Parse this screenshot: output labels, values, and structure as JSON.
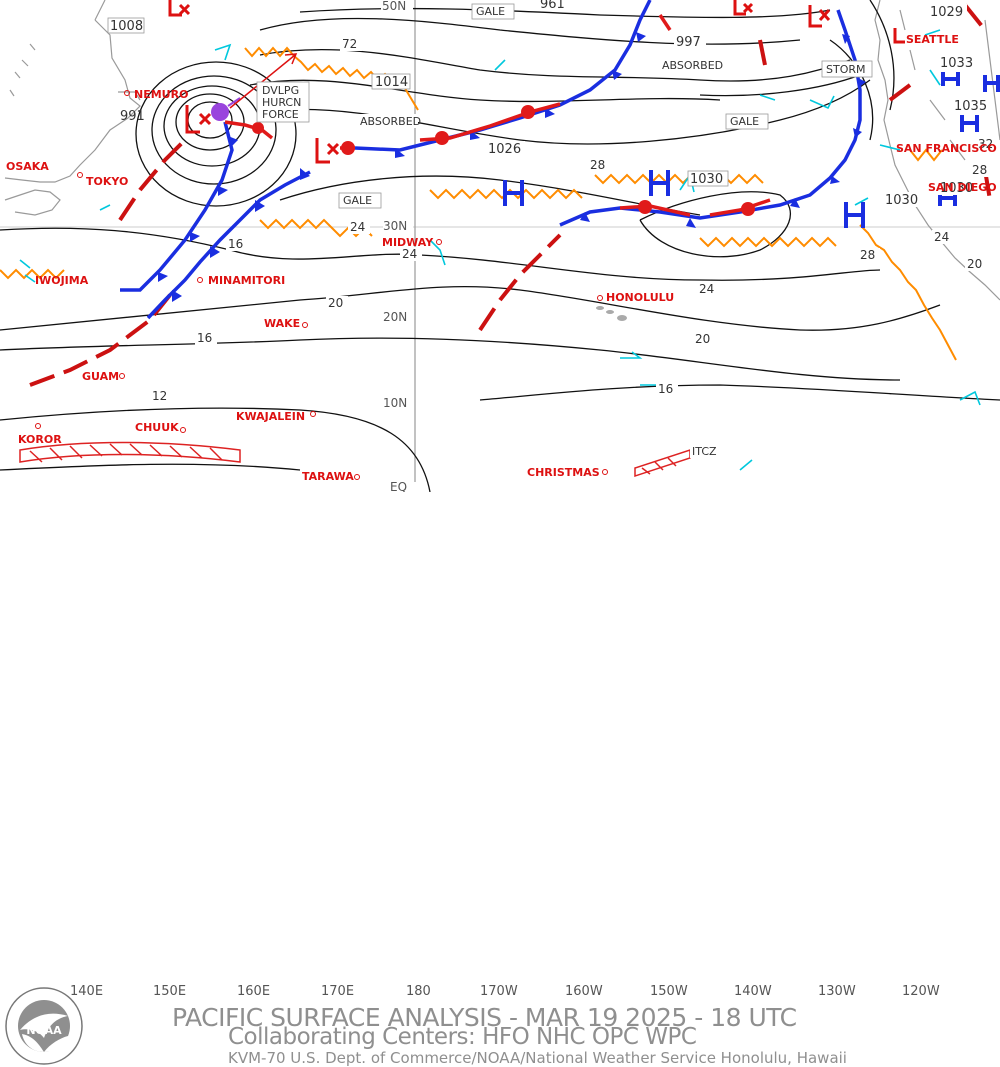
{
  "header": {
    "title": "PACIFIC SURFACE ANALYSIS - MAR 19 2025 - 18 UTC",
    "subtitle": "Collaborating Centers:  HFO NHC OPC WPC",
    "credit": "KVM-70 U.S. Dept. of Commerce/NOAA/National Weather Service Honolulu, Hawaii",
    "logo_text": "NOAA"
  },
  "axes": {
    "longitudes": [
      "140E",
      "150E",
      "160E",
      "170E",
      "180",
      "170W",
      "160W",
      "150W",
      "140W",
      "130W",
      "120W"
    ],
    "latitudes": [
      "50N",
      "30N",
      "20N",
      "10N",
      "EQ"
    ]
  },
  "cities": [
    "NEMURO",
    "OSAKA",
    "TOKYO",
    "IWOJIMA",
    "MINAMITORI",
    "WAKE",
    "GUAM",
    "KOROR",
    "CHUUK",
    "KWAJALEIN",
    "TARAWA",
    "MIDWAY",
    "HONOLULU",
    "CHRISTMAS",
    "SEATTLE",
    "SAN FRANCISCO",
    "SAN DIEGO"
  ],
  "systems": {
    "pressure_values": [
      "1008",
      "991",
      "1014",
      "1026",
      "1030",
      "1030",
      "1030",
      "1029",
      "1033",
      "1035",
      "961",
      "997"
    ],
    "isobar_labels": [
      "72",
      "24",
      "20",
      "16",
      "12",
      "24",
      "28",
      "24",
      "20",
      "16",
      "28",
      "24",
      "20",
      "32",
      "28",
      "16"
    ],
    "boxes": [
      "GALE",
      "GALE",
      "GALE",
      "STORM",
      "ABSORBED",
      "ABSORBED",
      "DVLPG",
      "HURCN",
      "FORCE",
      "ITCZ"
    ]
  },
  "colors": {
    "low": "#dd1111",
    "high": "#1133cc",
    "cold_front": "#1a2ee0",
    "warm_front": "#e01a1a",
    "trough": "#cc1111",
    "ridge": "#ff8c00",
    "wind": "#00ccdd",
    "land": "#aaaaaa"
  }
}
